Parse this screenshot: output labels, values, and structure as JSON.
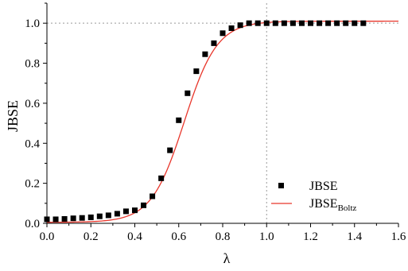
{
  "chart_data": {
    "type": "scatter",
    "xlabel": "λ",
    "ylabel": "JBSE",
    "xlim": [
      0.0,
      1.6
    ],
    "ylim": [
      0.0,
      1.1
    ],
    "xticks": [
      "0.0",
      "0.2",
      "0.4",
      "0.6",
      "0.8",
      "1.0",
      "1.2",
      "1.4",
      "1.6"
    ],
    "yticks": [
      "0.0",
      "0.2",
      "0.4",
      "0.6",
      "0.8",
      "1.0"
    ],
    "reference_lines": {
      "x": 1.0,
      "y": 1.0,
      "style": "dotted",
      "color": "#999999"
    },
    "legend_position": "lower-right",
    "legend": {
      "scatter_label": "JBSE",
      "line_label_main": "JBSE",
      "line_label_sub": "Boltz"
    },
    "series": [
      {
        "type": "scatter",
        "marker": "square",
        "color": "#000000",
        "x": [
          0.0,
          0.04,
          0.08,
          0.12,
          0.16,
          0.2,
          0.24,
          0.28,
          0.32,
          0.36,
          0.4,
          0.44,
          0.48,
          0.52,
          0.56,
          0.6,
          0.64,
          0.68,
          0.72,
          0.76,
          0.8,
          0.84,
          0.88,
          0.92,
          0.96,
          1.0,
          1.04,
          1.08,
          1.12,
          1.16,
          1.2,
          1.24,
          1.28,
          1.32,
          1.36,
          1.4,
          1.44
        ],
        "y": [
          0.02,
          0.02,
          0.022,
          0.025,
          0.027,
          0.03,
          0.035,
          0.04,
          0.048,
          0.06,
          0.065,
          0.09,
          0.135,
          0.225,
          0.365,
          0.515,
          0.65,
          0.76,
          0.845,
          0.9,
          0.95,
          0.975,
          0.99,
          1.0,
          1.0,
          1.0,
          1.0,
          1.0,
          1.0,
          1.0,
          1.0,
          1.0,
          1.0,
          1.0,
          1.0,
          1.0,
          1.0
        ]
      },
      {
        "type": "line",
        "color": "#e8362b",
        "model": "boltzmann",
        "params": {
          "A1": 0.005,
          "A2": 1.01,
          "x0": 0.625,
          "dx": 0.075
        }
      }
    ]
  }
}
